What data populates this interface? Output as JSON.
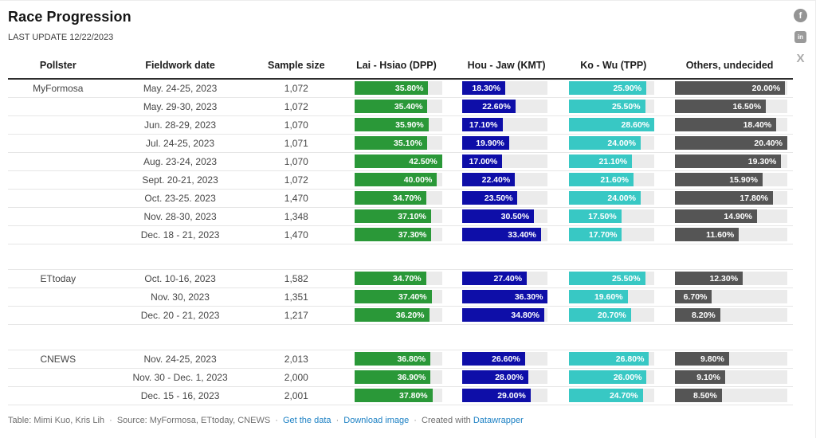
{
  "page": {
    "title": "Race Progression",
    "subtitle": "LAST UPDATE 12/22/2023"
  },
  "social_icons": [
    {
      "name": "facebook-icon",
      "glyph": "f",
      "cls": "fb"
    },
    {
      "name": "linkedin-icon",
      "glyph": "in",
      "cls": "li"
    },
    {
      "name": "x-icon",
      "glyph": "X",
      "cls": "xx"
    }
  ],
  "colors": {
    "dpp": "#2a9838",
    "kmt": "#0e0ea8",
    "tpp": "#38c8c4",
    "others": "#555555",
    "track": "#ebebeb",
    "link": "#1d81c4"
  },
  "footer": {
    "separator": "·",
    "segments": [
      {
        "text": "Table: Mimi Kuo, Kris Lih",
        "link": false
      },
      {
        "text": "Source: MyFormosa, ETtoday, CNEWS",
        "link": false
      },
      {
        "text": "Get the data",
        "link": true
      },
      {
        "text": "Download image",
        "link": true
      },
      {
        "text": "Created with ",
        "link": false,
        "trail_link": "Datawrapper"
      }
    ]
  },
  "chart_data": {
    "type": "table",
    "columns": [
      "Pollster",
      "Fieldwork date",
      "Sample size",
      "Lai - Hsiao (DPP)",
      "Hou - Jaw (KMT)",
      "Ko - Wu (TPP)",
      "Others, undecided"
    ],
    "bar_columns": [
      "dpp",
      "kmt",
      "tpp",
      "others"
    ],
    "value_format": "percent_2dp",
    "groups": [
      {
        "pollster": "MyFormosa",
        "rows": [
          {
            "date": "May. 24-25, 2023",
            "sample": "1,072",
            "values": {
              "dpp": 35.8,
              "kmt": 18.3,
              "tpp": 25.9,
              "others": 20.0
            }
          },
          {
            "date": "May. 29-30, 2023",
            "sample": "1,072",
            "values": {
              "dpp": 35.4,
              "kmt": 22.6,
              "tpp": 25.5,
              "others": 16.5
            }
          },
          {
            "date": "Jun. 28-29, 2023",
            "sample": "1,070",
            "values": {
              "dpp": 35.9,
              "kmt": 17.1,
              "tpp": 28.6,
              "others": 18.4
            }
          },
          {
            "date": "Jul. 24-25, 2023",
            "sample": "1,071",
            "values": {
              "dpp": 35.1,
              "kmt": 19.9,
              "tpp": 24.0,
              "others": 20.4
            }
          },
          {
            "date": "Aug. 23-24, 2023",
            "sample": "1,070",
            "values": {
              "dpp": 42.5,
              "kmt": 17.0,
              "tpp": 21.1,
              "others": 19.3
            }
          },
          {
            "date": "Sept. 20-21, 2023",
            "sample": "1,072",
            "values": {
              "dpp": 40.0,
              "kmt": 22.4,
              "tpp": 21.6,
              "others": 15.9
            }
          },
          {
            "date": "Oct. 23-25. 2023",
            "sample": "1,470",
            "values": {
              "dpp": 34.7,
              "kmt": 23.5,
              "tpp": 24.0,
              "others": 17.8
            }
          },
          {
            "date": "Nov. 28-30, 2023",
            "sample": "1,348",
            "values": {
              "dpp": 37.1,
              "kmt": 30.5,
              "tpp": 17.5,
              "others": 14.9
            }
          },
          {
            "date": "Dec. 18 - 21, 2023",
            "sample": "1,470",
            "values": {
              "dpp": 37.3,
              "kmt": 33.4,
              "tpp": 17.7,
              "others": 11.6
            }
          }
        ]
      },
      {
        "pollster": "ETtoday",
        "rows": [
          {
            "date": "Oct. 10-16, 2023",
            "sample": "1,582",
            "values": {
              "dpp": 34.7,
              "kmt": 27.4,
              "tpp": 25.5,
              "others": 12.3
            }
          },
          {
            "date": "Nov. 30, 2023",
            "sample": "1,351",
            "values": {
              "dpp": 37.4,
              "kmt": 36.3,
              "tpp": 19.6,
              "others": 6.7
            }
          },
          {
            "date": "Dec. 20 - 21, 2023",
            "sample": "1,217",
            "values": {
              "dpp": 36.2,
              "kmt": 34.8,
              "tpp": 20.7,
              "others": 8.2
            }
          }
        ]
      },
      {
        "pollster": "CNEWS",
        "rows": [
          {
            "date": "Nov. 24-25, 2023",
            "sample": "2,013",
            "values": {
              "dpp": 36.8,
              "kmt": 26.6,
              "tpp": 26.8,
              "others": 9.8
            }
          },
          {
            "date": "Nov. 30 - Dec. 1, 2023",
            "sample": "2,000",
            "values": {
              "dpp": 36.9,
              "kmt": 28.0,
              "tpp": 26.0,
              "others": 9.1
            }
          },
          {
            "date": "Dec. 15 - 16, 2023",
            "sample": "2,001",
            "values": {
              "dpp": 37.8,
              "kmt": 29.0,
              "tpp": 24.7,
              "others": 8.5
            }
          }
        ]
      }
    ]
  }
}
